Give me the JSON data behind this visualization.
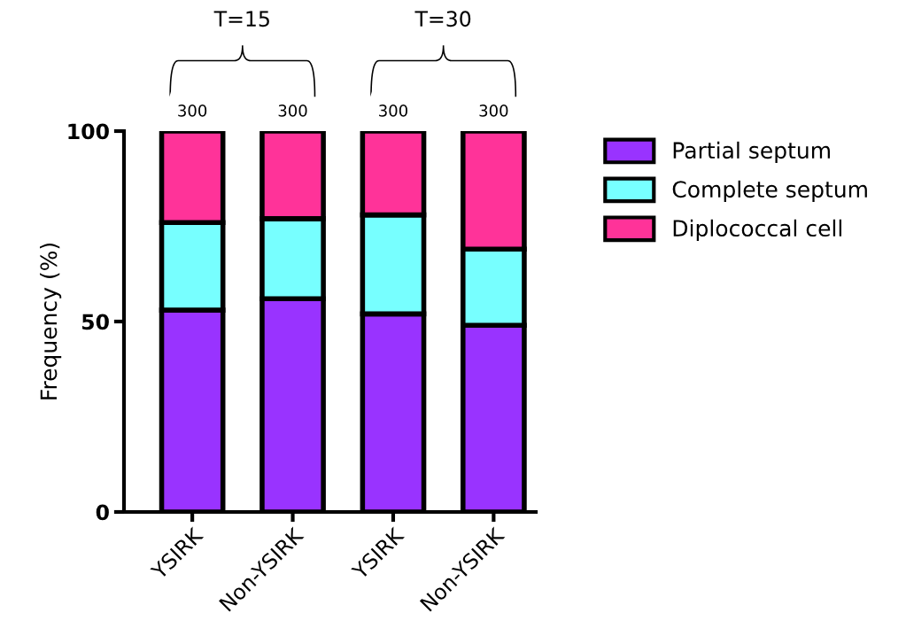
{
  "chart_data": {
    "type": "bar",
    "stacked": true,
    "categories": [
      "YSIRK",
      "Non-YSIRK",
      "YSIRK",
      "Non-YSIRK"
    ],
    "series": [
      {
        "name": "Partial septum",
        "color": "#9933ff",
        "values": [
          53,
          56,
          52,
          49
        ]
      },
      {
        "name": "Complete septum",
        "color": "#77ffff",
        "values": [
          23,
          21,
          26,
          20
        ]
      },
      {
        "name": "Diplococcal cell",
        "color": "#ff3399",
        "values": [
          24,
          23,
          22,
          31
        ]
      }
    ],
    "ylabel": "Frequency (%)",
    "ylim": [
      0,
      100
    ],
    "yticks": [
      0,
      50,
      100
    ],
    "annotations": [
      "300",
      "300",
      "300",
      "300",
      "T=15",
      "T=30"
    ],
    "legend": "top right",
    "grid": false
  }
}
